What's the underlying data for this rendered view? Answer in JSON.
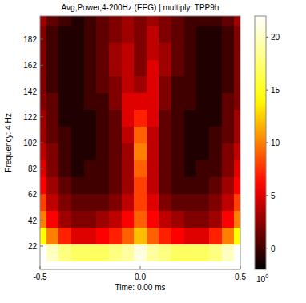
{
  "chart_data": {
    "type": "heatmap",
    "title": "Avg,Power,4-200Hz (EEG) | multiply: TPP9h",
    "x_label": "Time: 0.00 ms",
    "y_label": "Frequency: 4 Hz",
    "x": [
      -0.5,
      -0.4375,
      -0.375,
      -0.3125,
      -0.25,
      -0.1875,
      -0.125,
      -0.0625,
      0,
      0.0625,
      0.125,
      0.1875,
      0.25,
      0.3125,
      0.375,
      0.4375,
      0.5
    ],
    "y": [
      4,
      17,
      30,
      43,
      56,
      69,
      82,
      95,
      108,
      121,
      134,
      147,
      160,
      173,
      186,
      199
    ],
    "values": [
      [
        24,
        25,
        26,
        26,
        26,
        26,
        26,
        26,
        26,
        26,
        26,
        26,
        26,
        26,
        26,
        25,
        24
      ],
      [
        22,
        20,
        18,
        17,
        17,
        17,
        18,
        19,
        21,
        19,
        18,
        17,
        17,
        17,
        18,
        20,
        22
      ],
      [
        14,
        10,
        7,
        5,
        5,
        6,
        7,
        9,
        12,
        9,
        7,
        6,
        5,
        5,
        7,
        10,
        14
      ],
      [
        10,
        6,
        3,
        2,
        2,
        3,
        4,
        6,
        9,
        6,
        4,
        3,
        2,
        2,
        3,
        6,
        10
      ],
      [
        8,
        4,
        2,
        1,
        1,
        1,
        2,
        4,
        8,
        5,
        2,
        1,
        1,
        1,
        2,
        4,
        8
      ],
      [
        6,
        3,
        1,
        0,
        0,
        0,
        1,
        3,
        8,
        4,
        1,
        0,
        0,
        0,
        1,
        3,
        6
      ],
      [
        5,
        2,
        0,
        -1,
        0,
        0,
        1,
        3,
        9,
        4,
        1,
        0,
        -1,
        0,
        0,
        2,
        5
      ],
      [
        4,
        2,
        0,
        -1,
        -1,
        0,
        1,
        3,
        10,
        4,
        1,
        0,
        -1,
        -1,
        0,
        2,
        4
      ],
      [
        3,
        1,
        0,
        -1,
        -1,
        0,
        1,
        4,
        9,
        4,
        1,
        0,
        -1,
        -1,
        0,
        1,
        3
      ],
      [
        3,
        1,
        -1,
        -1,
        -1,
        0,
        1,
        5,
        7,
        5,
        1,
        0,
        -1,
        -1,
        -1,
        1,
        3
      ],
      [
        2,
        1,
        -1,
        -1,
        0,
        0,
        2,
        5,
        5,
        5,
        2,
        0,
        0,
        -1,
        -1,
        1,
        2
      ],
      [
        2,
        0,
        -1,
        -1,
        0,
        1,
        2,
        4,
        3,
        5,
        2,
        0,
        0,
        -1,
        -1,
        0,
        2
      ],
      [
        2,
        0,
        -1,
        -1,
        0,
        1,
        3,
        4,
        2,
        5,
        3,
        1,
        0,
        -1,
        -1,
        0,
        2
      ],
      [
        2,
        0,
        -1,
        -1,
        0,
        1,
        3,
        4,
        2,
        4,
        3,
        1,
        0,
        -1,
        -1,
        0,
        2
      ],
      [
        2,
        0,
        -1,
        -1,
        0,
        1,
        2,
        3,
        2,
        4,
        2,
        1,
        0,
        -1,
        -1,
        0,
        2
      ],
      [
        3,
        1,
        0,
        -1,
        0,
        1,
        2,
        3,
        2,
        3,
        2,
        1,
        0,
        0,
        0,
        1,
        3
      ]
    ],
    "xlim": [
      -0.5,
      0.5
    ],
    "ylim": [
      4,
      200
    ],
    "xticks": [
      -0.5,
      {
        "value": 0,
        "label": "0.0"
      },
      0.5
    ],
    "yticks": [
      22,
      42,
      62,
      82,
      102,
      122,
      142,
      162,
      182
    ],
    "colorbar": {
      "range": [
        -2,
        22
      ],
      "ticks": [
        0,
        5,
        10,
        15,
        20
      ],
      "scale_label": {
        "base": "10",
        "exponent": "0"
      }
    }
  }
}
